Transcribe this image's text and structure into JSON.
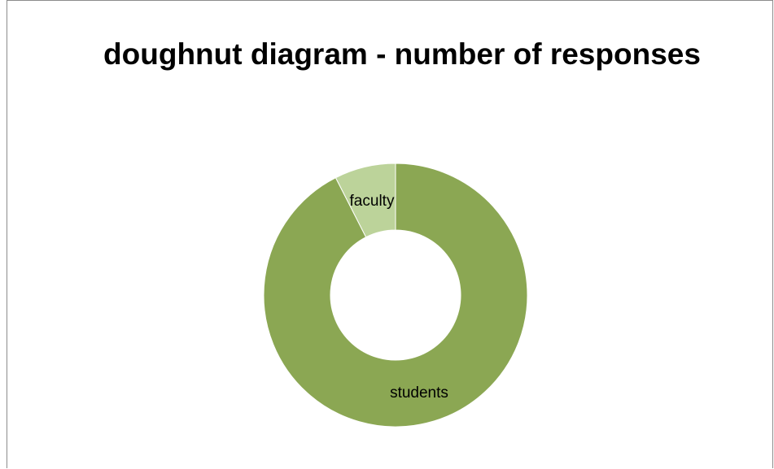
{
  "chart_data": {
    "type": "doughnut",
    "title": "doughnut diagram - number of responses",
    "categories": [
      "students",
      "faculty"
    ],
    "values": [
      92.5,
      7.5
    ],
    "colors": [
      "#8BA753",
      "#BCD39A"
    ],
    "legend": "none",
    "data_labels": "category name"
  }
}
